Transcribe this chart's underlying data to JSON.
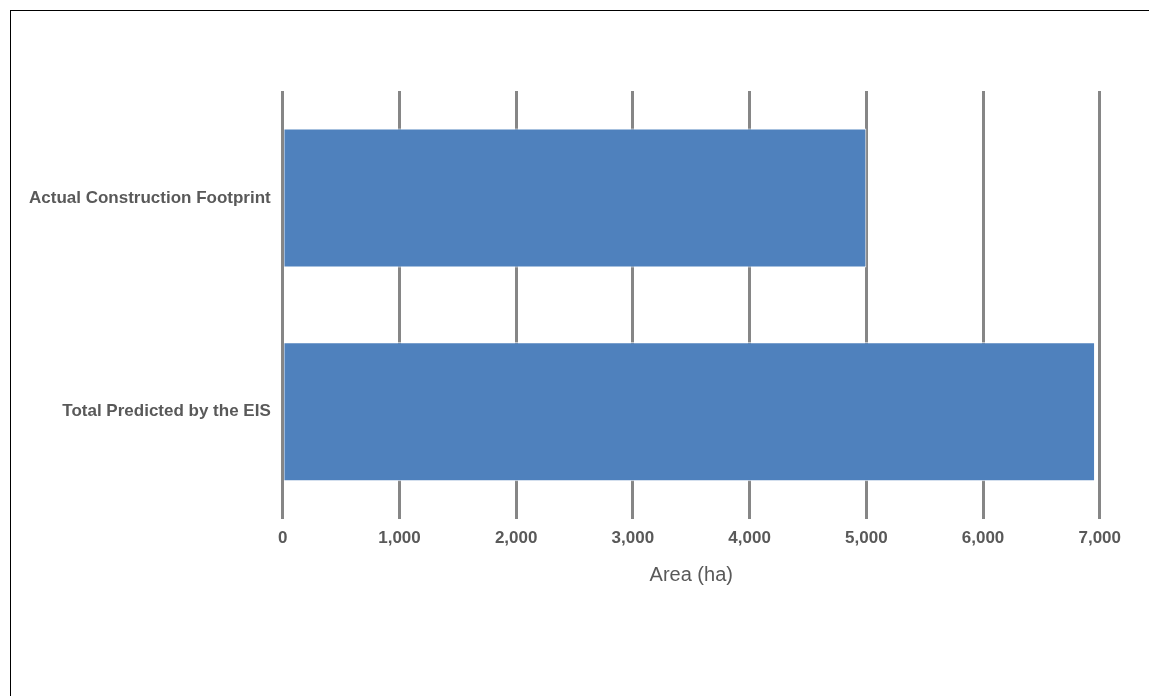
{
  "chart_data": {
    "type": "bar",
    "orientation": "horizontal",
    "categories": [
      "Actual Construction Footprint",
      "Total Predicted by the EIS"
    ],
    "values": [
      5000,
      6960
    ],
    "color": "#4f81bd",
    "xlabel": "Area (ha)",
    "xlim": [
      0,
      7000
    ],
    "xticks": [
      {
        "value": 0,
        "label": "0"
      },
      {
        "value": 1000,
        "label": "1,000"
      },
      {
        "value": 2000,
        "label": "2,000"
      },
      {
        "value": 3000,
        "label": "3,000"
      },
      {
        "value": 4000,
        "label": "4,000"
      },
      {
        "value": 5000,
        "label": "5,000"
      },
      {
        "value": 6000,
        "label": "6,000"
      },
      {
        "value": 7000,
        "label": "7,000"
      }
    ],
    "grid": "x",
    "legend": false
  }
}
